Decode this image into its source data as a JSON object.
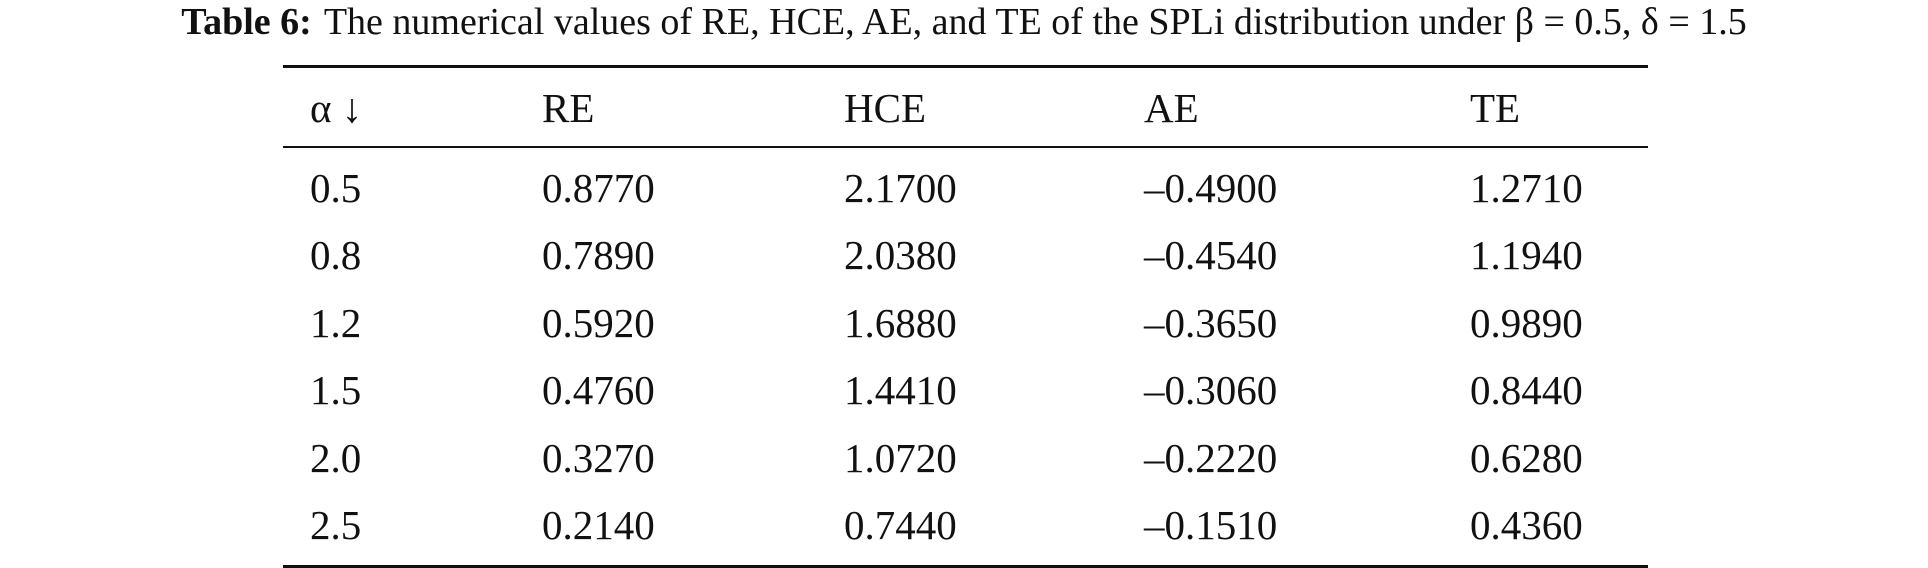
{
  "caption": {
    "label": "Table 6:",
    "text": "The numerical values of RE, HCE, AE, and TE of the SPLi distribution under β = 0.5, δ = 1.5"
  },
  "table": {
    "header": [
      "α ↓",
      "RE",
      "HCE",
      "AE",
      "TE"
    ],
    "rows": [
      [
        "0.5",
        "0.8770",
        "2.1700",
        "–0.4900",
        "1.2710"
      ],
      [
        "0.8",
        "0.7890",
        "2.0380",
        "–0.4540",
        "1.1940"
      ],
      [
        "1.2",
        "0.5920",
        "1.6880",
        "–0.3650",
        "0.9890"
      ],
      [
        "1.5",
        "0.4760",
        "1.4410",
        "–0.3060",
        "0.8440"
      ],
      [
        "2.0",
        "0.3270",
        "1.0720",
        "–0.2220",
        "0.6280"
      ],
      [
        "2.5",
        "0.2140",
        "0.7440",
        "–0.1510",
        "0.4360"
      ]
    ]
  }
}
